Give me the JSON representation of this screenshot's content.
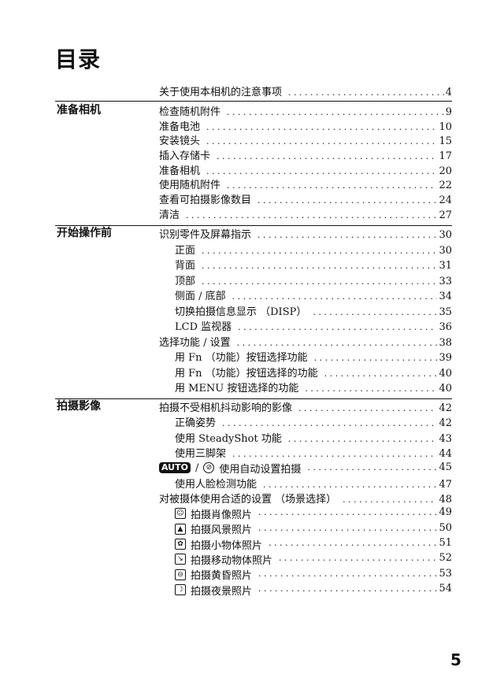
{
  "title": "目录",
  "intro": {
    "text": "关于使用本相机的注意事项",
    "page": "4"
  },
  "sections": [
    {
      "label": "准备相机",
      "entries": [
        {
          "text": "检查随机附件",
          "page": "9"
        },
        {
          "text": "准备电池",
          "page": "10"
        },
        {
          "text": "安装镜头",
          "page": "15"
        },
        {
          "text": "插入存储卡",
          "page": "17"
        },
        {
          "text": "准备相机",
          "page": "20"
        },
        {
          "text": "使用随机附件",
          "page": "22"
        },
        {
          "text": "查看可拍摄影像数目",
          "page": "24"
        },
        {
          "text": "清洁",
          "page": "27"
        }
      ]
    },
    {
      "label": "开始操作前",
      "entries": [
        {
          "text": "识别零件及屏幕指示",
          "page": "30"
        },
        {
          "text": "正面",
          "page": "30",
          "indent": true
        },
        {
          "text": "背面",
          "page": "31",
          "indent": true
        },
        {
          "text": "顶部",
          "page": "33",
          "indent": true
        },
        {
          "text": "侧面 / 底部",
          "page": "34",
          "indent": true
        },
        {
          "text": "切换拍摄信息显示 （DISP）",
          "page": "35",
          "indent": true
        },
        {
          "text": "LCD 监视器",
          "page": "36",
          "indent": true
        },
        {
          "text": "选择功能 / 设置",
          "page": "38"
        },
        {
          "text": "用 Fn （功能）按钮选择功能",
          "page": "39",
          "indent": true
        },
        {
          "text": "用 Fn （功能）按钮选择的功能",
          "page": "40",
          "indent": true
        },
        {
          "text": "用 MENU 按钮选择的功能",
          "page": "40",
          "indent": true
        }
      ]
    },
    {
      "label": "拍摄影像",
      "entries": [
        {
          "text": "拍摄不受相机抖动影响的影像",
          "page": "42"
        },
        {
          "text": "正确姿势",
          "page": "42",
          "indent": true
        },
        {
          "text": "使用 SteadyShot 功能",
          "page": "43",
          "indent": true
        },
        {
          "text": "使用三脚架",
          "page": "44",
          "indent": true
        },
        {
          "text": "使用自动设置拍摄",
          "page": "45",
          "icon": "auto-mode-icon",
          "badge": "AUTO",
          "sep": "/",
          "icon2": "flash-off-icon"
        },
        {
          "text": "使用人脸检测功能",
          "page": "47",
          "indent": true
        },
        {
          "text": "对被摄体使用合适的设置 （场景选择）",
          "page": "48"
        },
        {
          "text": "拍摄肖像照片",
          "page": "49",
          "indent": true,
          "icon": "portrait-icon"
        },
        {
          "text": "拍摄风景照片",
          "page": "50",
          "indent": true,
          "icon": "landscape-icon"
        },
        {
          "text": "拍摄小物体照片",
          "page": "51",
          "indent": true,
          "icon": "macro-icon"
        },
        {
          "text": "拍摄移动物体照片",
          "page": "52",
          "indent": true,
          "icon": "sports-action-icon"
        },
        {
          "text": "拍摄黄昏照片",
          "page": "53",
          "indent": true,
          "icon": "sunset-icon"
        },
        {
          "text": "拍摄夜景照片",
          "page": "54",
          "indent": true,
          "icon": "night-portrait-icon"
        }
      ]
    }
  ],
  "page_number": "5"
}
